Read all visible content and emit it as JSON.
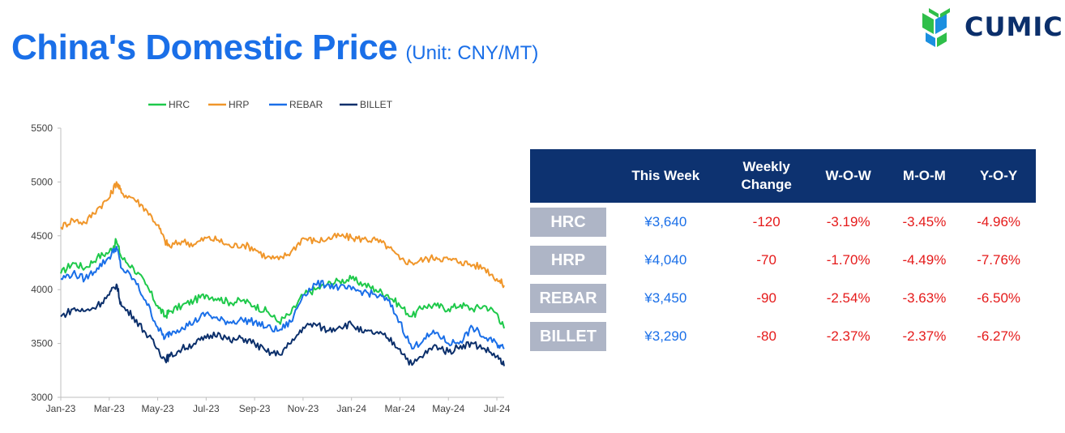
{
  "header": {
    "title": "China's Domestic Price",
    "unit": "(Unit: CNY/MT)",
    "logo_text": "CUMIC",
    "logo_icon": "cumic-leaf-icon"
  },
  "colors": {
    "title_blue": "#1a6fe8",
    "table_header": "#0d3270",
    "label_box": "#aeb5c6",
    "negative_red": "#e51a1a",
    "HRC": "#1ec94a",
    "HRP": "#f0962a",
    "REBAR": "#1a6fe8",
    "BILLET": "#0b2f6b"
  },
  "table": {
    "headers": [
      "",
      "This Week",
      "Weekly Change",
      "W-O-W",
      "M-O-M",
      "Y-O-Y"
    ],
    "header_weekly_1": "Weekly",
    "header_weekly_2": "Change",
    "rows": [
      {
        "label": "HRC",
        "this_week": "¥3,640",
        "weekly_change": "-120",
        "wow": "-3.19%",
        "mom": "-3.45%",
        "yoy": "-4.96%"
      },
      {
        "label": "HRP",
        "this_week": "¥4,040",
        "weekly_change": "-70",
        "wow": "-1.70%",
        "mom": "-4.49%",
        "yoy": "-7.76%"
      },
      {
        "label": "REBAR",
        "this_week": "¥3,450",
        "weekly_change": "-90",
        "wow": "-2.54%",
        "mom": "-3.63%",
        "yoy": "-6.50%"
      },
      {
        "label": "BILLET",
        "this_week": "¥3,290",
        "weekly_change": "-80",
        "wow": "-2.37%",
        "mom": "-2.37%",
        "yoy": "-6.27%"
      }
    ]
  },
  "chart_data": {
    "type": "line",
    "title": "",
    "xlabel": "",
    "ylabel": "",
    "ylim": [
      3000,
      5500
    ],
    "yticks": [
      3000,
      3500,
      4000,
      4500,
      5000,
      5500
    ],
    "x_range": [
      0,
      18.3
    ],
    "x_tick_positions": [
      0,
      2,
      4,
      6,
      8,
      10,
      12,
      14,
      16,
      18
    ],
    "x_tick_labels": [
      "Jan-23",
      "Mar-23",
      "May-23",
      "Jul-23",
      "Sep-23",
      "Nov-23",
      "Jan-24",
      "Mar-24",
      "May-24",
      "Jul-24"
    ],
    "legend_position": "top",
    "x": [
      0,
      0.5,
      1,
      1.5,
      2,
      2.3,
      2.5,
      3,
      3.5,
      4,
      4.3,
      4.5,
      5,
      5.5,
      6,
      6.5,
      7,
      7.5,
      8,
      8.5,
      9,
      9.5,
      10,
      10.5,
      11,
      11.5,
      12,
      12.5,
      13,
      13.5,
      14,
      14.5,
      15,
      15.5,
      16,
      16.5,
      17,
      17.5,
      18,
      18.3
    ],
    "series": [
      {
        "name": "HRC",
        "values": [
          4150,
          4250,
          4200,
          4300,
          4350,
          4450,
          4300,
          4200,
          4050,
          3850,
          3750,
          3800,
          3850,
          3900,
          3950,
          3920,
          3880,
          3900,
          3850,
          3800,
          3700,
          3780,
          3950,
          4000,
          4050,
          4080,
          4100,
          4050,
          4000,
          3950,
          3850,
          3750,
          3850,
          3850,
          3820,
          3860,
          3820,
          3850,
          3780,
          3640
        ]
      },
      {
        "name": "HRP",
        "values": [
          4580,
          4650,
          4620,
          4750,
          4850,
          5000,
          4900,
          4850,
          4750,
          4600,
          4450,
          4400,
          4450,
          4420,
          4480,
          4460,
          4400,
          4420,
          4380,
          4300,
          4280,
          4350,
          4480,
          4450,
          4470,
          4500,
          4480,
          4470,
          4460,
          4400,
          4280,
          4250,
          4280,
          4300,
          4280,
          4260,
          4230,
          4200,
          4100,
          4040
        ]
      },
      {
        "name": "REBAR",
        "values": [
          4100,
          4150,
          4100,
          4200,
          4300,
          4400,
          4200,
          4100,
          3900,
          3650,
          3550,
          3600,
          3650,
          3700,
          3780,
          3720,
          3700,
          3720,
          3700,
          3650,
          3620,
          3700,
          3950,
          4050,
          4050,
          4020,
          4000,
          3980,
          3950,
          3900,
          3700,
          3450,
          3550,
          3600,
          3500,
          3520,
          3650,
          3550,
          3500,
          3450
        ]
      },
      {
        "name": "BILLET",
        "values": [
          3750,
          3820,
          3800,
          3850,
          3950,
          4050,
          3850,
          3750,
          3600,
          3450,
          3350,
          3380,
          3450,
          3500,
          3550,
          3600,
          3520,
          3550,
          3500,
          3420,
          3400,
          3500,
          3650,
          3680,
          3620,
          3660,
          3680,
          3600,
          3600,
          3550,
          3450,
          3300,
          3400,
          3480,
          3420,
          3480,
          3500,
          3450,
          3380,
          3290
        ]
      }
    ]
  }
}
